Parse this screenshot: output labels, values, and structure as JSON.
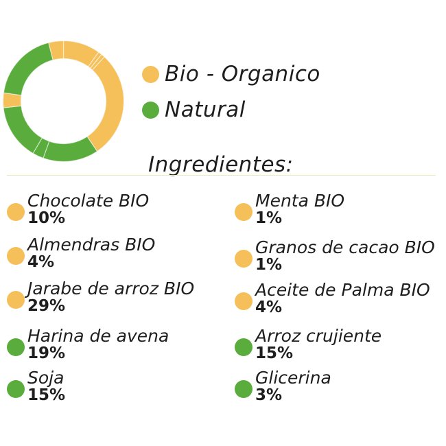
{
  "colors": {
    "bio": "#f5c05a",
    "natural": "#5aad3c"
  },
  "legend": [
    {
      "label": "Bio - Organico",
      "color": "#f5c05a"
    },
    {
      "label": "Natural",
      "color": "#5aad3c"
    }
  ],
  "heading": "Ingredientes:",
  "ingredients_left": [
    {
      "name": "Chocolate BIO",
      "percent": "10%",
      "color": "#f5c05a"
    },
    {
      "name": "Almendras BIO",
      "percent": "4%",
      "color": "#f5c05a"
    },
    {
      "name": "Jarabe de arroz BIO",
      "percent": "29%",
      "color": "#f5c05a"
    },
    {
      "name": "Harina de avena",
      "percent": "19%",
      "color": "#5aad3c"
    },
    {
      "name": "Soja",
      "percent": "15%",
      "color": "#5aad3c"
    }
  ],
  "ingredients_right": [
    {
      "name": "Menta BIO",
      "percent": "1%",
      "color": "#f5c05a"
    },
    {
      "name": "Granos de cacao BIO",
      "percent": "1%",
      "color": "#f5c05a"
    },
    {
      "name": "Aceite de Palma BIO",
      "percent": "4%",
      "color": "#f5c05a"
    },
    {
      "name": "Arroz crujiente",
      "percent": "15%",
      "color": "#5aad3c"
    },
    {
      "name": "Glicerina",
      "percent": "3%",
      "color": "#5aad3c"
    }
  ],
  "chart_data": {
    "type": "pie",
    "categories": [
      "Chocolate BIO",
      "Menta BIO",
      "Granos de cacao BIO",
      "Jarabe de arroz BIO",
      "Arroz crujiente",
      "Glicerina",
      "Soja",
      "Almendras BIO",
      "Harina de avena",
      "Aceite de Palma BIO"
    ],
    "values": [
      10,
      1,
      1,
      29,
      15,
      3,
      15,
      4,
      19,
      4
    ],
    "colors": [
      "#f5c05a",
      "#f5c05a",
      "#f5c05a",
      "#f5c05a",
      "#5aad3c",
      "#5aad3c",
      "#5aad3c",
      "#f5c05a",
      "#5aad3c",
      "#f5c05a"
    ],
    "legend_position": "right",
    "donut": true
  }
}
